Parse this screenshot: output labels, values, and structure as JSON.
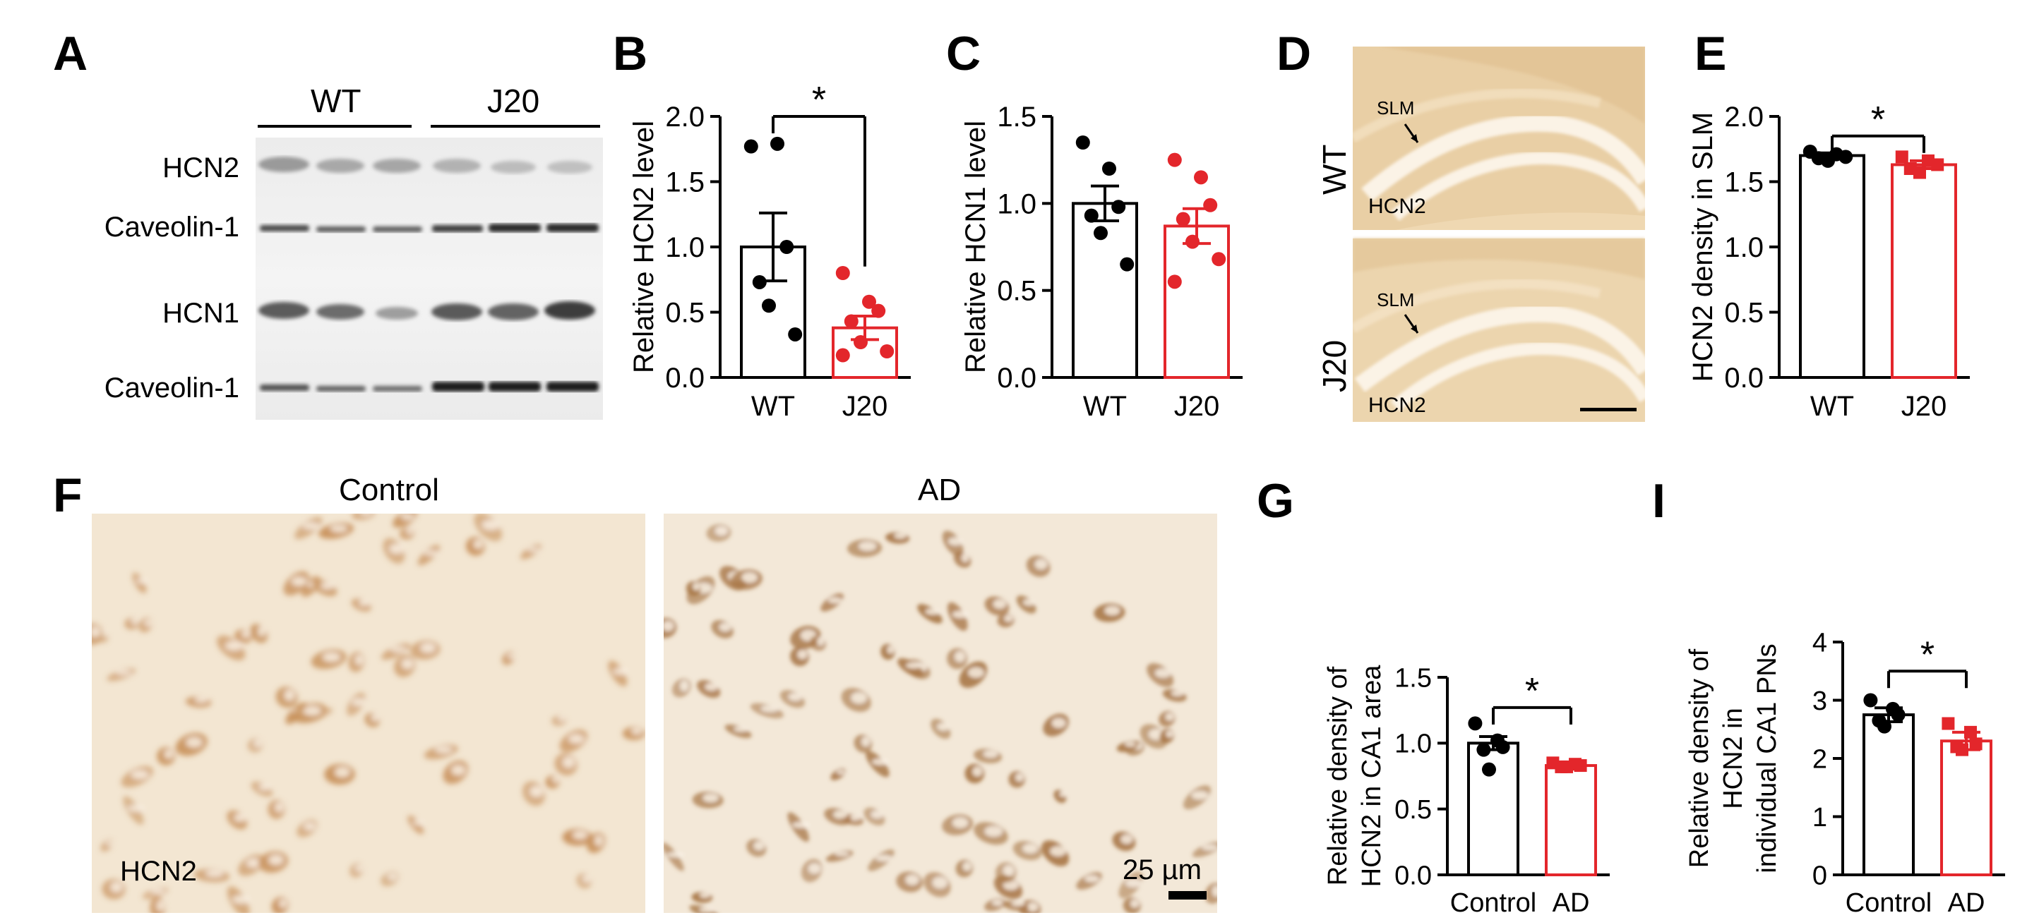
{
  "panels": {
    "A": {
      "letter": "A",
      "groups": [
        "WT",
        "J20"
      ],
      "rows": [
        "HCN2",
        "Caveolin-1",
        "HCN1",
        "Caveolin-1"
      ]
    },
    "B": {
      "letter": "B"
    },
    "C": {
      "letter": "C"
    },
    "D": {
      "letter": "D",
      "rows": [
        "WT",
        "J20"
      ],
      "region_label": "SLM",
      "stain_label": "HCN2"
    },
    "E": {
      "letter": "E"
    },
    "F": {
      "letter": "F",
      "titles": [
        "Control",
        "AD"
      ],
      "stain_label": "HCN2",
      "scale_label": "25 µm"
    },
    "G": {
      "letter": "G"
    },
    "I": {
      "letter": "I"
    }
  },
  "colors": {
    "wt": "#000000",
    "j20": "#e3262b",
    "tissue_bg": "#f3e6d2",
    "stain": "#c8915a"
  },
  "chart_data": [
    {
      "id": "B",
      "type": "bar",
      "categories": [
        "WT",
        "J20"
      ],
      "values": [
        1.0,
        0.38
      ],
      "sem": [
        0.26,
        0.09
      ],
      "points": [
        [
          1.77,
          1.79,
          1.0,
          0.73,
          0.55,
          0.33
        ],
        [
          0.8,
          0.58,
          0.51,
          0.43,
          0.27,
          0.2,
          0.17
        ]
      ],
      "ylabel": "Relative HCN2 level",
      "ylim": [
        0,
        2.0
      ],
      "yticks": [
        "0.0",
        "0.5",
        "1.0",
        "1.5",
        "2.0"
      ],
      "significance": "*"
    },
    {
      "id": "C",
      "type": "bar",
      "categories": [
        "WT",
        "J20"
      ],
      "values": [
        1.0,
        0.87
      ],
      "sem": [
        0.1,
        0.1
      ],
      "points": [
        [
          1.35,
          1.2,
          0.98,
          0.93,
          0.83,
          0.65
        ],
        [
          1.25,
          1.15,
          0.99,
          0.91,
          0.78,
          0.68,
          0.55
        ]
      ],
      "ylabel": "Relative HCN1 level",
      "ylim": [
        0,
        1.5
      ],
      "yticks": [
        "0.0",
        "0.5",
        "1.0",
        "1.5"
      ]
    },
    {
      "id": "E",
      "type": "bar",
      "categories": [
        "WT",
        "J20"
      ],
      "values": [
        1.7,
        1.63
      ],
      "sem": [
        0.02,
        0.03
      ],
      "points": [
        [
          1.73,
          1.71,
          1.69,
          1.68,
          1.66
        ],
        [
          1.69,
          1.66,
          1.63,
          1.6,
          1.57
        ]
      ],
      "ylabel": "HCN2 density in SLM",
      "ylim": [
        0,
        2.0
      ],
      "yticks": [
        "0.0",
        "0.5",
        "1.0",
        "1.5",
        "2.0"
      ],
      "significance": "*"
    },
    {
      "id": "G",
      "type": "bar",
      "categories": [
        "Control",
        "AD"
      ],
      "values": [
        1.0,
        0.83
      ],
      "sem": [
        0.05,
        0.02
      ],
      "points": [
        [
          1.15,
          1.02,
          0.97,
          0.95,
          0.8
        ],
        [
          0.85,
          0.84,
          0.83,
          0.82,
          0.82
        ]
      ],
      "ylabel": "Relative density of HCN2 in CA1 area",
      "ylabel_lines": [
        "Relative density of",
        "HCN2 in CA1 area"
      ],
      "ylim": [
        0,
        1.5
      ],
      "yticks": [
        "0.0",
        "0.5",
        "1.0",
        "1.5"
      ],
      "significance": "*"
    },
    {
      "id": "I",
      "type": "bar",
      "categories": [
        "Control",
        "AD"
      ],
      "values": [
        2.75,
        2.3
      ],
      "sem": [
        0.12,
        0.15
      ],
      "points": [
        [
          3.0,
          2.85,
          2.75,
          2.65,
          2.55
        ],
        [
          2.6,
          2.45,
          2.25,
          2.2,
          2.15
        ]
      ],
      "ylabel": "Relative density of HCN2 in individual CA1 PNs",
      "ylabel_lines": [
        "Relative density of",
        "HCN2 in",
        "individual CA1 PNs"
      ],
      "ylim": [
        0,
        4
      ],
      "yticks": [
        "0",
        "1",
        "2",
        "3",
        "4"
      ],
      "significance": "*"
    }
  ]
}
